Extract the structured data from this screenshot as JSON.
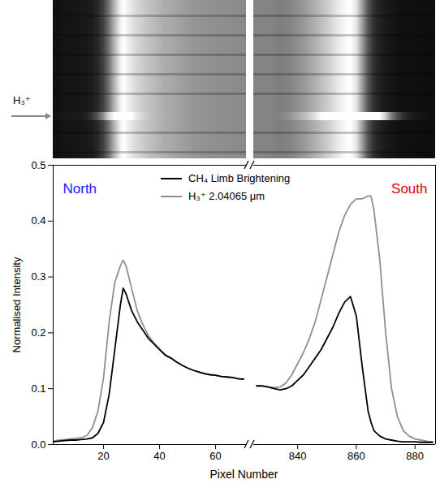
{
  "chart_data": {
    "type": "line",
    "xlabel": "Pixel Number",
    "ylabel": "Normalised Intensity",
    "ylim": [
      0,
      0.5
    ],
    "yticks": [
      {
        "value": 0,
        "label": "0.0"
      },
      0.1,
      0.2,
      0.3,
      0.4,
      0.5
    ],
    "legend": "top",
    "annotations": [
      "H₃⁺"
    ],
    "panels": [
      {
        "title": "North",
        "color": "#1a1aff",
        "xlim": [
          2,
          71
        ],
        "xticks": [
          20,
          40,
          60
        ],
        "x": [
          2,
          4,
          6,
          8,
          10,
          12,
          14,
          16,
          18,
          20,
          22,
          24,
          26,
          27,
          28,
          30,
          32,
          34,
          36,
          38,
          40,
          42,
          44,
          46,
          48,
          50,
          52,
          54,
          56,
          58,
          60,
          62,
          64,
          66,
          68,
          70
        ],
        "series": [
          {
            "name": "CH₄ Limb Brightening",
            "color": "#000000",
            "values": [
              0.005,
              0.006,
              0.007,
              0.008,
              0.008,
              0.009,
              0.01,
              0.012,
              0.02,
              0.04,
              0.09,
              0.17,
              0.25,
              0.28,
              0.27,
              0.24,
              0.22,
              0.205,
              0.19,
              0.18,
              0.17,
              0.16,
              0.155,
              0.148,
              0.142,
              0.137,
              0.133,
              0.13,
              0.127,
              0.125,
              0.124,
              0.122,
              0.121,
              0.12,
              0.118,
              0.117
            ]
          },
          {
            "name": "H₃⁺ 2.04065 μm",
            "color": "#909090",
            "values": [
              0.006,
              0.008,
              0.009,
              0.01,
              0.011,
              0.012,
              0.016,
              0.03,
              0.06,
              0.12,
              0.22,
              0.29,
              0.32,
              0.33,
              0.32,
              0.28,
              0.24,
              0.215,
              0.195,
              0.182,
              0.171,
              0.161,
              0.155,
              0.148,
              0.142,
              0.137,
              0.133,
              0.13,
              0.127,
              0.125,
              0.124,
              0.122,
              0.121,
              0.12,
              0.118,
              0.117
            ]
          }
        ]
      },
      {
        "title": "South",
        "color": "#e00000",
        "xlim": [
          825,
          887
        ],
        "xticks": [
          840,
          860,
          880
        ],
        "x": [
          826,
          828,
          830,
          832,
          834,
          836,
          838,
          840,
          842,
          844,
          846,
          848,
          850,
          852,
          854,
          856,
          858,
          860,
          862,
          864,
          865,
          866,
          868,
          870,
          872,
          874,
          876,
          878,
          880,
          882,
          884,
          886
        ],
        "series": [
          {
            "name": "CH₄ Limb Brightening",
            "color": "#000000",
            "values": [
              0.105,
              0.105,
              0.103,
              0.1,
              0.098,
              0.1,
              0.105,
              0.115,
              0.125,
              0.14,
              0.155,
              0.17,
              0.19,
              0.21,
              0.235,
              0.255,
              0.265,
              0.23,
              0.14,
              0.06,
              0.04,
              0.025,
              0.015,
              0.01,
              0.008,
              0.006,
              0.005,
              0.005,
              0.005,
              0.004,
              0.004,
              0.004
            ]
          },
          {
            "name": "H₃⁺ 2.04065 μm",
            "color": "#909090",
            "values": [
              0.105,
              0.105,
              0.103,
              0.102,
              0.103,
              0.11,
              0.125,
              0.145,
              0.165,
              0.19,
              0.22,
              0.26,
              0.3,
              0.34,
              0.38,
              0.41,
              0.43,
              0.44,
              0.44,
              0.445,
              0.445,
              0.42,
              0.33,
              0.2,
              0.1,
              0.05,
              0.025,
              0.015,
              0.01,
              0.008,
              0.006,
              0.005
            ]
          }
        ]
      }
    ]
  }
}
